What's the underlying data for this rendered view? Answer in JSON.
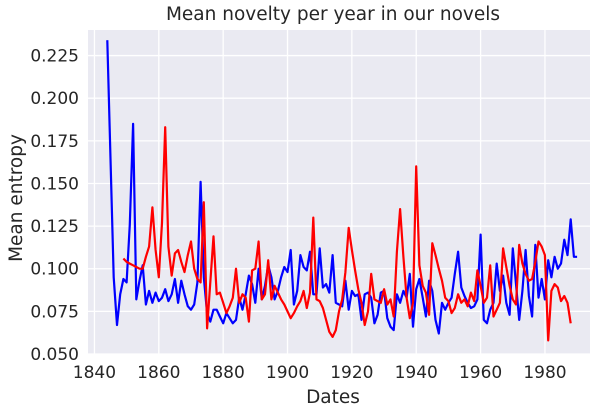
{
  "chart_data": {
    "type": "line",
    "title": "Mean novelty per year in our novels",
    "xlabel": "Dates",
    "ylabel": "Mean entropy",
    "xlim": [
      1838,
      1994
    ],
    "ylim": [
      0.05,
      0.24
    ],
    "xticks": [
      1840,
      1860,
      1880,
      1900,
      1920,
      1940,
      1960,
      1980
    ],
    "xtick_labels": [
      "1840",
      "1860",
      "1880",
      "1900",
      "1920",
      "1940",
      "1960",
      "1980"
    ],
    "yticks": [
      0.05,
      0.075,
      0.1,
      0.125,
      0.15,
      0.175,
      0.2,
      0.225
    ],
    "ytick_labels": [
      "0.050",
      "0.075",
      "0.100",
      "0.125",
      "0.150",
      "0.175",
      "0.200",
      "0.225"
    ],
    "grid": true,
    "style": "seaborn-darkgrid",
    "colors": {
      "background": "#eaeaf2",
      "grid": "#ffffff",
      "blue": "#0000ff",
      "red": "#ff0000"
    },
    "series": [
      {
        "color": "#0000ff",
        "x": [
          1844,
          1846,
          1847,
          1848,
          1849,
          1850,
          1851,
          1852,
          1853,
          1854,
          1855,
          1856,
          1857,
          1858,
          1859,
          1860,
          1861,
          1862,
          1863,
          1864,
          1865,
          1866,
          1867,
          1868,
          1869,
          1870,
          1871,
          1872,
          1873,
          1874,
          1875,
          1876,
          1877,
          1878,
          1879,
          1880,
          1881,
          1882,
          1883,
          1884,
          1885,
          1886,
          1887,
          1888,
          1889,
          1890,
          1891,
          1892,
          1893,
          1894,
          1895,
          1896,
          1897,
          1898,
          1899,
          1900,
          1901,
          1902,
          1903,
          1904,
          1905,
          1906,
          1907,
          1908,
          1909,
          1910,
          1911,
          1912,
          1913,
          1914,
          1915,
          1916,
          1917,
          1918,
          1919,
          1920,
          1921,
          1922,
          1923,
          1924,
          1925,
          1926,
          1927,
          1928,
          1929,
          1930,
          1931,
          1932,
          1933,
          1934,
          1935,
          1936,
          1937,
          1938,
          1939,
          1940,
          1941,
          1942,
          1943,
          1944,
          1945,
          1946,
          1947,
          1948,
          1949,
          1950,
          1951,
          1952,
          1953,
          1954,
          1955,
          1956,
          1957,
          1958,
          1959,
          1960,
          1961,
          1962,
          1963,
          1964,
          1965,
          1966,
          1967,
          1968,
          1969,
          1970,
          1971,
          1972,
          1973,
          1974,
          1975,
          1976,
          1977,
          1978,
          1979,
          1980,
          1981,
          1982,
          1983,
          1984,
          1985,
          1986,
          1987,
          1988,
          1989,
          1990
        ],
        "y": [
          0.234,
          0.095,
          0.067,
          0.085,
          0.094,
          0.092,
          0.126,
          0.185,
          0.082,
          0.093,
          0.102,
          0.079,
          0.087,
          0.08,
          0.086,
          0.081,
          0.083,
          0.088,
          0.081,
          0.085,
          0.094,
          0.08,
          0.093,
          0.085,
          0.078,
          0.076,
          0.079,
          0.092,
          0.151,
          0.095,
          0.074,
          0.069,
          0.076,
          0.076,
          0.072,
          0.068,
          0.074,
          0.071,
          0.068,
          0.07,
          0.083,
          0.076,
          0.085,
          0.096,
          0.091,
          0.08,
          0.1,
          0.082,
          0.09,
          0.102,
          0.095,
          0.082,
          0.087,
          0.095,
          0.101,
          0.098,
          0.111,
          0.079,
          0.087,
          0.108,
          0.101,
          0.099,
          0.11,
          0.085,
          0.085,
          0.112,
          0.089,
          0.091,
          0.086,
          0.108,
          0.08,
          0.079,
          0.078,
          0.093,
          0.076,
          0.087,
          0.084,
          0.085,
          0.07,
          0.085,
          0.086,
          0.083,
          0.068,
          0.073,
          0.086,
          0.087,
          0.071,
          0.066,
          0.064,
          0.085,
          0.08,
          0.087,
          0.083,
          0.097,
          0.066,
          0.088,
          0.094,
          0.083,
          0.072,
          0.093,
          0.087,
          0.07,
          0.062,
          0.08,
          0.076,
          0.08,
          0.083,
          0.097,
          0.11,
          0.089,
          0.084,
          0.08,
          0.077,
          0.078,
          0.082,
          0.12,
          0.07,
          0.068,
          0.076,
          0.08,
          0.103,
          0.087,
          0.096,
          0.08,
          0.073,
          0.112,
          0.091,
          0.07,
          0.087,
          0.111,
          0.084,
          0.072,
          0.114,
          0.083,
          0.094,
          0.082,
          0.105,
          0.095,
          0.107,
          0.1,
          0.103,
          0.117,
          0.108,
          0.129,
          0.107,
          0.107
        ],
        "y_override_note": ""
      },
      {
        "color": "#ff0000",
        "x": [
          1849,
          1850,
          1851,
          1852,
          1853,
          1854,
          1855,
          1856,
          1857,
          1858,
          1859,
          1860,
          1861,
          1862,
          1863,
          1864,
          1865,
          1866,
          1867,
          1868,
          1869,
          1870,
          1871,
          1872,
          1873,
          1874,
          1875,
          1876,
          1877,
          1878,
          1879,
          1880,
          1881,
          1882,
          1883,
          1884,
          1885,
          1886,
          1887,
          1888,
          1889,
          1890,
          1891,
          1892,
          1893,
          1894,
          1895,
          1896,
          1897,
          1898,
          1899,
          1900,
          1901,
          1902,
          1903,
          1904,
          1905,
          1906,
          1907,
          1908,
          1909,
          1910,
          1911,
          1912,
          1913,
          1914,
          1915,
          1916,
          1917,
          1918,
          1919,
          1920,
          1921,
          1922,
          1923,
          1924,
          1925,
          1926,
          1927,
          1928,
          1929,
          1930,
          1931,
          1932,
          1933,
          1934,
          1935,
          1936,
          1937,
          1938,
          1939,
          1940,
          1941,
          1942,
          1943,
          1944,
          1945,
          1946,
          1947,
          1948,
          1949,
          1950,
          1951,
          1952,
          1953,
          1954,
          1955,
          1956,
          1957,
          1958,
          1959,
          1960,
          1961,
          1962,
          1963,
          1964,
          1965,
          1966,
          1967,
          1968,
          1969,
          1970,
          1971,
          1972,
          1973,
          1974,
          1975,
          1976,
          1977,
          1978,
          1979,
          1980,
          1981,
          1982,
          1983,
          1984,
          1985,
          1986,
          1987,
          1988
        ],
        "y": [
          0.106,
          0.104,
          0.103,
          0.102,
          0.101,
          0.1,
          0.1,
          0.107,
          0.113,
          0.136,
          0.111,
          0.095,
          0.127,
          0.183,
          0.113,
          0.096,
          0.109,
          0.111,
          0.104,
          0.098,
          0.108,
          0.116,
          0.1,
          0.094,
          0.092,
          0.139,
          0.065,
          0.092,
          0.119,
          0.085,
          0.086,
          0.08,
          0.074,
          0.078,
          0.083,
          0.1,
          0.08,
          0.085,
          0.083,
          0.069,
          0.099,
          0.1,
          0.116,
          0.082,
          0.085,
          0.105,
          0.082,
          0.09,
          0.086,
          0.082,
          0.079,
          0.075,
          0.071,
          0.074,
          0.078,
          0.081,
          0.087,
          0.077,
          0.086,
          0.13,
          0.082,
          0.081,
          0.077,
          0.07,
          0.063,
          0.06,
          0.064,
          0.075,
          0.082,
          0.098,
          0.124,
          0.111,
          0.099,
          0.088,
          0.08,
          0.067,
          0.075,
          0.097,
          0.082,
          0.081,
          0.08,
          0.088,
          0.079,
          0.082,
          0.072,
          0.11,
          0.135,
          0.107,
          0.083,
          0.071,
          0.08,
          0.16,
          0.102,
          0.09,
          0.086,
          0.073,
          0.115,
          0.108,
          0.1,
          0.093,
          0.083,
          0.081,
          0.074,
          0.077,
          0.085,
          0.08,
          0.082,
          0.078,
          0.086,
          0.081,
          0.099,
          0.09,
          0.08,
          0.083,
          0.102,
          0.072,
          0.076,
          0.08,
          0.112,
          0.101,
          0.09,
          0.082,
          0.079,
          0.114,
          0.103,
          0.097,
          0.093,
          0.094,
          0.104,
          0.116,
          0.113,
          0.108,
          0.058,
          0.087,
          0.091,
          0.089,
          0.081,
          0.084,
          0.08,
          0.068
        ],
        "y_override_note": ""
      }
    ]
  }
}
